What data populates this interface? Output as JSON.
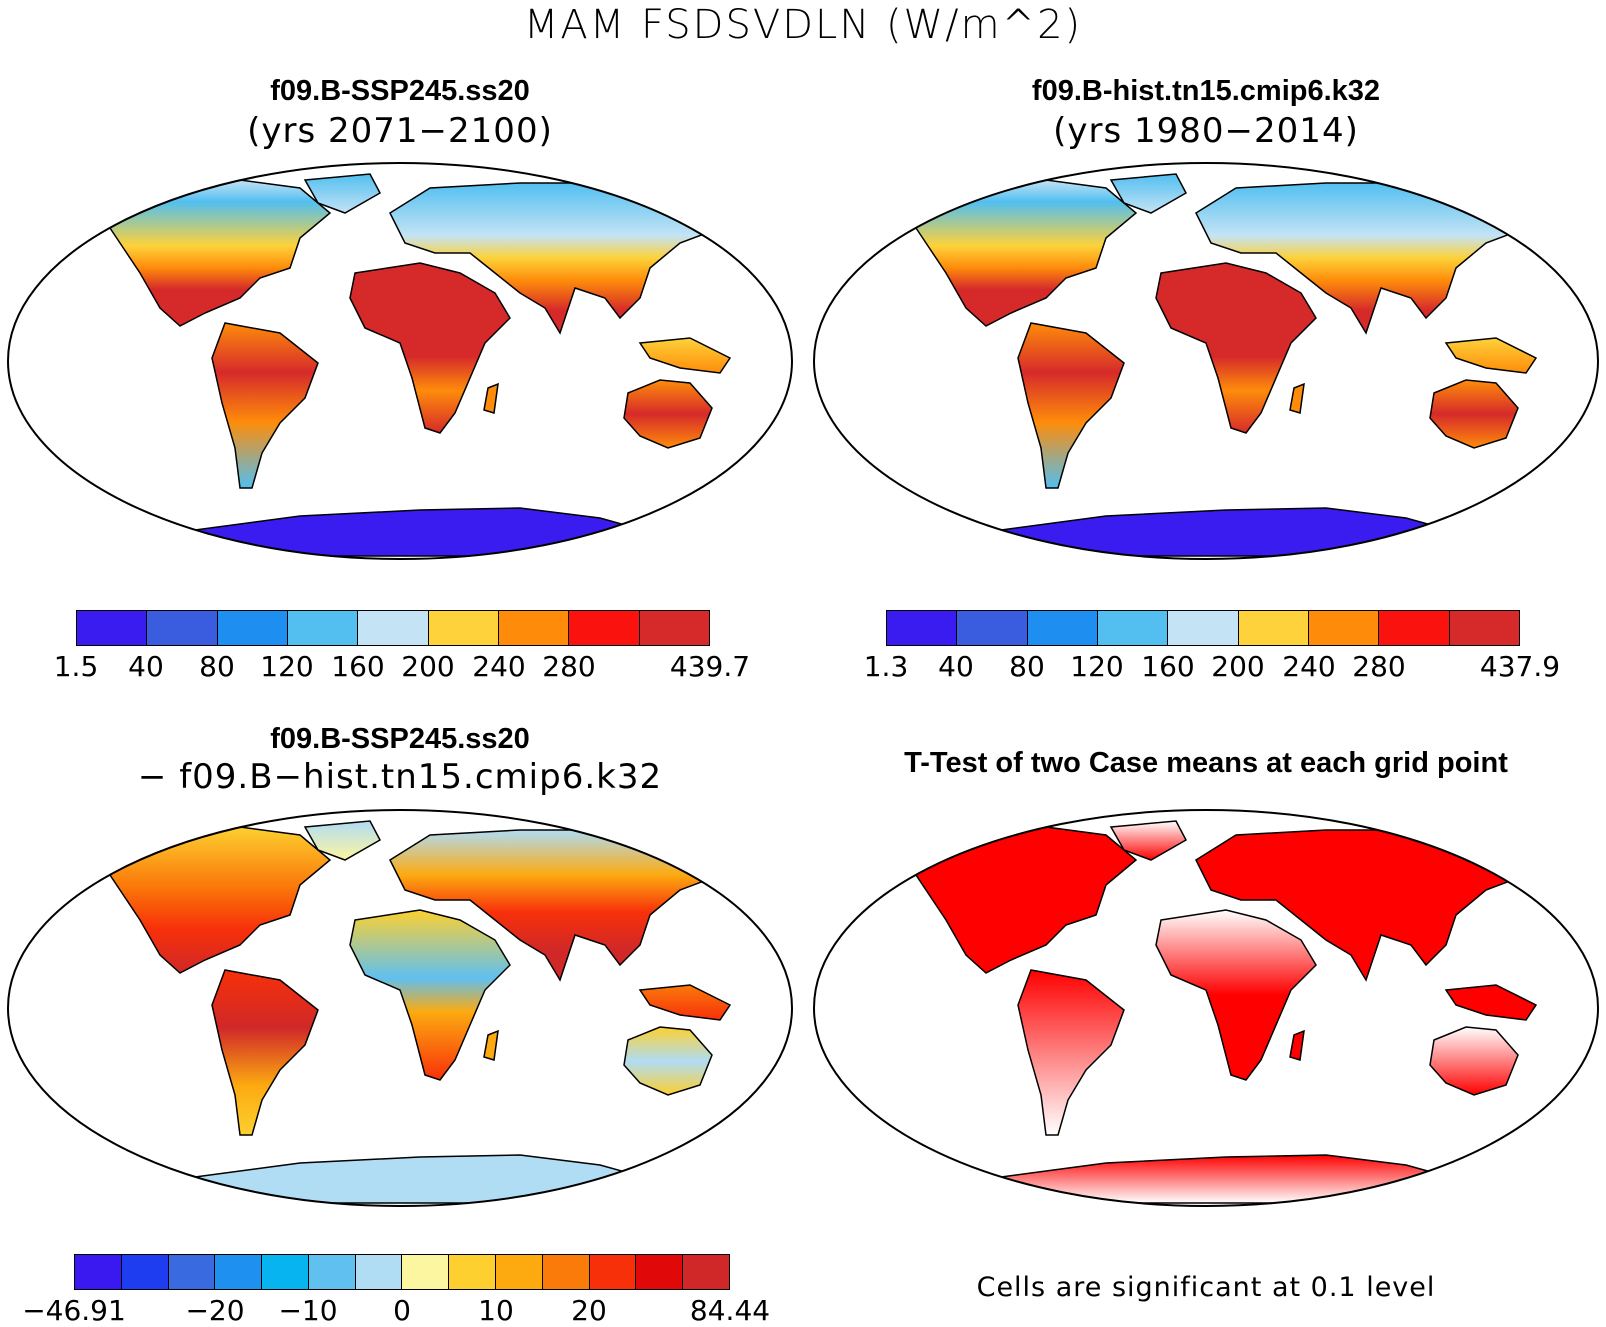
{
  "title": "MAM FSDSVDLN (W/m^2)",
  "panels": {
    "top_left": {
      "title": "f09.B-SSP245.ss20",
      "subtitle": "(yrs 2071−2100)"
    },
    "top_right": {
      "title": "f09.B-hist.tn15.cmip6.k32",
      "subtitle": "(yrs 1980−2014)"
    },
    "bottom_left": {
      "title": "f09.B-SSP245.ss20",
      "subtitle": "− f09.B−hist.tn15.cmip6.k32"
    },
    "bottom_right": {
      "title": "T-Test of two Case means at each grid point",
      "note": "Cells are significant at 0.1 level"
    }
  },
  "colorbars": {
    "top_left": {
      "colors": [
        "#3a1cf0",
        "#3a5ddf",
        "#1e8ef0",
        "#52bff0",
        "#c4e3f5",
        "#fdd23a",
        "#fe8c0a",
        "#f9120e",
        "#d62a2a"
      ],
      "labels": [
        "1.5",
        "40",
        "80",
        "120",
        "160",
        "200",
        "240",
        "280",
        "439.7"
      ]
    },
    "top_right": {
      "colors": [
        "#3a1cf0",
        "#3a5ddf",
        "#1e8ef0",
        "#52bff0",
        "#c4e3f5",
        "#fdd23a",
        "#fe8c0a",
        "#f9120e",
        "#d62a2a"
      ],
      "labels": [
        "1.3",
        "40",
        "80",
        "120",
        "160",
        "200",
        "240",
        "280",
        "437.9"
      ]
    },
    "bottom_left": {
      "colors": [
        "#3a18f0",
        "#1e3cf0",
        "#3a6ae0",
        "#1e90f0",
        "#08b4f0",
        "#60c0f0",
        "#b0dcf4",
        "#fdf6a0",
        "#fdd030",
        "#fcaa10",
        "#fa7a0a",
        "#f8300a",
        "#e00808",
        "#d02828"
      ],
      "labels": [
        "−46.91",
        "−20",
        "−10",
        "0",
        "10",
        "20",
        "84.44"
      ]
    }
  }
}
